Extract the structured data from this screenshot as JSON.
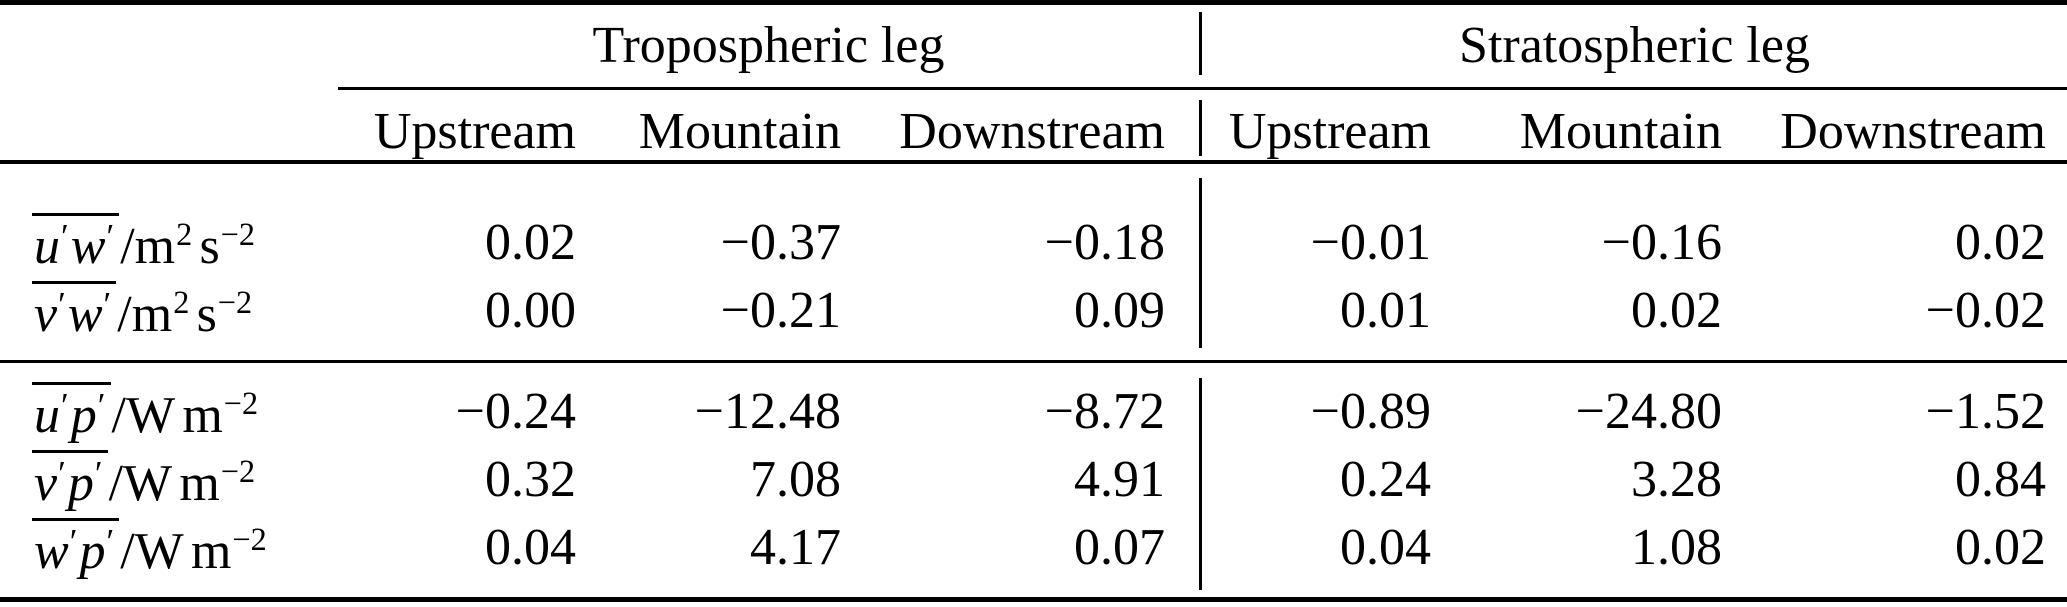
{
  "colors": {
    "background": "#ffffff",
    "text": "#000000",
    "rule": "#000000"
  },
  "table": {
    "col_groups": [
      {
        "label": "Tropospheric leg",
        "sub_headers": [
          "Upstream",
          "Mountain",
          "Downstream"
        ]
      },
      {
        "label": "Stratospheric leg",
        "sub_headers": [
          "Upstream",
          "Mountain",
          "Downstream"
        ]
      }
    ],
    "sections": [
      {
        "rows": [
          {
            "quantity": {
              "barred": [
                [
                  "u",
                  "′"
                ],
                [
                  "w",
                  "′"
                ]
              ],
              "unit_prefix": "/",
              "units": [
                [
                  "m",
                  "2"
                ],
                [
                  "s",
                  "−2"
                ]
              ]
            },
            "values": [
              "0.02",
              "−0.37",
              "−0.18",
              "−0.01",
              "−0.16",
              "0.02"
            ]
          },
          {
            "quantity": {
              "barred": [
                [
                  "v",
                  "′"
                ],
                [
                  "w",
                  "′"
                ]
              ],
              "unit_prefix": "/",
              "units": [
                [
                  "m",
                  "2"
                ],
                [
                  "s",
                  "−2"
                ]
              ]
            },
            "values": [
              "0.00",
              "−0.21",
              "0.09",
              "0.01",
              "0.02",
              "−0.02"
            ]
          }
        ]
      },
      {
        "rows": [
          {
            "quantity": {
              "barred": [
                [
                  "u",
                  "′"
                ],
                [
                  "p",
                  "′"
                ]
              ],
              "unit_prefix": "/",
              "units": [
                [
                  "W",
                  ""
                ],
                [
                  "m",
                  "−2"
                ]
              ]
            },
            "values": [
              "−0.24",
              "−12.48",
              "−8.72",
              "−0.89",
              "−24.80",
              "−1.52"
            ]
          },
          {
            "quantity": {
              "barred": [
                [
                  "v",
                  "′"
                ],
                [
                  "p",
                  "′"
                ]
              ],
              "unit_prefix": "/",
              "units": [
                [
                  "W",
                  ""
                ],
                [
                  "m",
                  "−2"
                ]
              ]
            },
            "values": [
              "0.32",
              "7.08",
              "4.91",
              "0.24",
              "3.28",
              "0.84"
            ]
          },
          {
            "quantity": {
              "barred": [
                [
                  "w",
                  "′"
                ],
                [
                  "p",
                  "′"
                ]
              ],
              "unit_prefix": "/",
              "units": [
                [
                  "W",
                  ""
                ],
                [
                  "m",
                  "−2"
                ]
              ]
            },
            "values": [
              "0.04",
              "4.17",
              "0.07",
              "0.04",
              "1.08",
              "0.02"
            ]
          }
        ]
      }
    ]
  }
}
